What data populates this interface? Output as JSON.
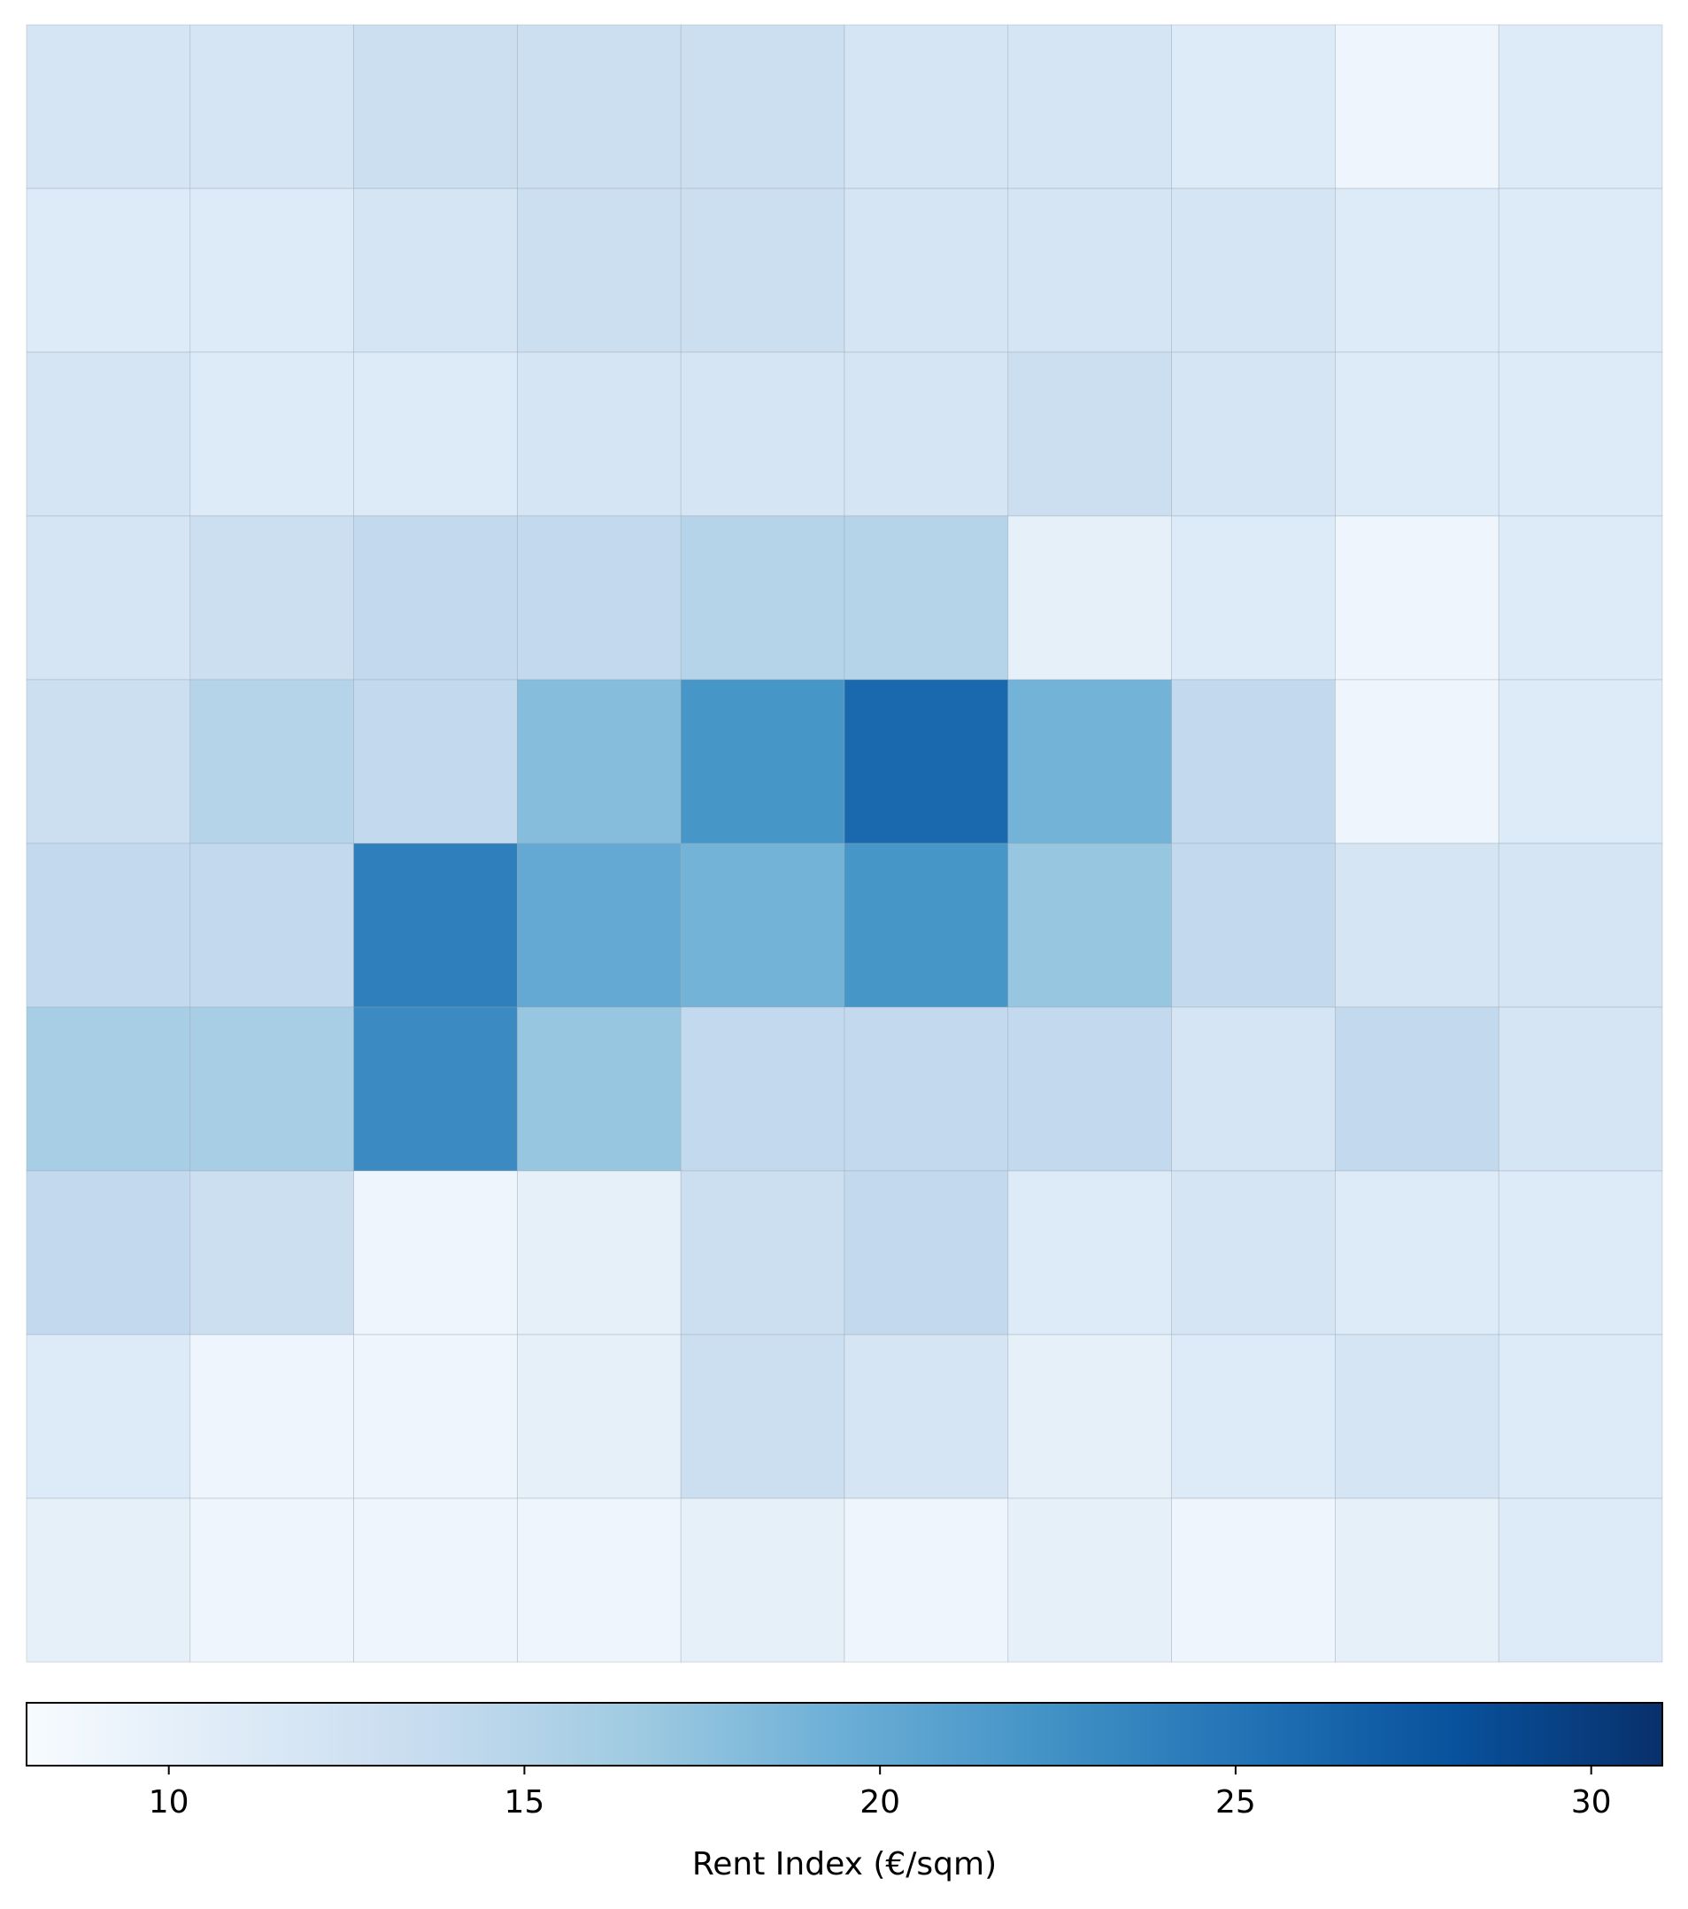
{
  "chart_data": {
    "type": "choropleth",
    "colormap": "Blues",
    "values": [
      [
        12,
        12,
        13,
        13,
        13,
        12,
        12,
        11,
        9,
        11
      ],
      [
        11,
        11,
        12,
        13,
        13,
        12,
        12,
        12,
        11,
        11
      ],
      [
        12,
        11,
        11,
        12,
        12,
        12,
        13,
        12,
        11,
        11
      ],
      [
        12,
        13,
        14,
        14,
        15,
        15,
        10,
        11,
        9,
        11
      ],
      [
        13,
        15,
        14,
        18,
        22,
        26,
        19,
        14,
        9,
        11
      ],
      [
        14,
        14,
        24,
        20,
        19,
        22,
        17,
        14,
        12,
        12
      ],
      [
        16,
        16,
        23,
        17,
        14,
        14,
        14,
        12,
        14,
        12
      ],
      [
        14,
        13,
        9,
        10,
        13,
        14,
        11,
        12,
        11,
        11
      ],
      [
        11,
        9,
        9,
        10,
        13,
        12,
        10,
        11,
        12,
        11
      ],
      [
        10,
        9,
        9,
        9,
        10,
        9,
        10,
        9,
        10,
        11
      ]
    ],
    "clim": [
      8,
      31
    ],
    "cticks": [
      10,
      15,
      20,
      25,
      30
    ],
    "colorbar_label": "Rent Index (€/sqm)"
  }
}
